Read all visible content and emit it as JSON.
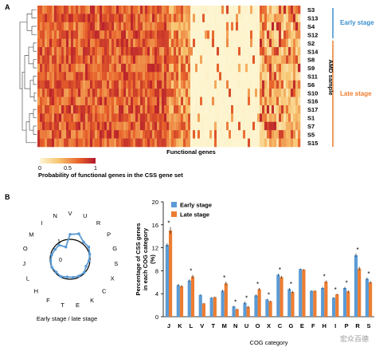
{
  "panel_a": {
    "label": "A",
    "samples": [
      "S3",
      "S13",
      "S4",
      "S12",
      "S2",
      "S14",
      "S8",
      "S9",
      "S11",
      "S6",
      "S10",
      "S16",
      "S17",
      "S1",
      "S7",
      "S5",
      "S15"
    ],
    "groups": [
      {
        "name": "Early stage",
        "color": "#3a8fcf"
      },
      {
        "name": "Late stage",
        "color": "#ef7d2e"
      }
    ],
    "y_axis_label": "AMD sample",
    "x_axis_label": "Functional genes",
    "colorbar": {
      "ticks": [
        "0",
        "0.5",
        "1"
      ],
      "title": "Probability of functional genes in the CSS gene set",
      "colors": [
        "#fdf6d3",
        "#f7c46f",
        "#e8632b",
        "#b2182b"
      ]
    }
  },
  "panel_b": {
    "label": "B",
    "radar_caption": "Early stage  / late stage",
    "radar_ring_labels": [
      "0",
      "1"
    ],
    "legend": [
      "Early stage",
      "Late stage"
    ],
    "colors": {
      "early": "#5b9bd5",
      "late": "#ed7d31"
    },
    "watermark": "宏众百德"
  },
  "chart_data": [
    {
      "type": "radar",
      "categories": [
        "V",
        "U",
        "R",
        "P",
        "G",
        "S",
        "X",
        "C",
        "K",
        "E",
        "T",
        "F",
        "H",
        "L",
        "J",
        "O",
        "M",
        "I",
        "N"
      ],
      "series": [
        {
          "name": "Early stage / late stage",
          "values": [
            1.25,
            1.35,
            1.1,
            1.12,
            1.02,
            0.95,
            0.88,
            0.97,
            0.95,
            0.92,
            0.9,
            0.98,
            0.95,
            1.0,
            0.98,
            0.95,
            0.9,
            0.9,
            0.65
          ]
        }
      ],
      "rings": [
        0,
        1
      ]
    },
    {
      "type": "bar",
      "categories": [
        "J",
        "K",
        "L",
        "V",
        "T",
        "M",
        "N",
        "U",
        "O",
        "X",
        "C",
        "G",
        "E",
        "F",
        "H",
        "I",
        "P",
        "R",
        "S"
      ],
      "series": [
        {
          "name": "Early stage",
          "values": [
            12.5,
            5.5,
            6.3,
            3.8,
            3.3,
            4.5,
            1.8,
            2.4,
            3.7,
            3.0,
            7.3,
            4.8,
            8.3,
            4.5,
            5.0,
            3.3,
            5.0,
            10.7,
            6.6
          ],
          "errors": [
            0.3,
            0.2,
            0.2,
            0.1,
            0.1,
            0.2,
            0.1,
            0.2,
            0.2,
            0.1,
            0.2,
            0.2,
            0.1,
            0.1,
            0.2,
            0.1,
            0.2,
            0.3,
            0.2
          ]
        },
        {
          "name": "Late stage",
          "values": [
            15.0,
            5.3,
            7.0,
            2.3,
            3.4,
            5.8,
            1.3,
            1.7,
            4.8,
            2.7,
            6.9,
            4.3,
            8.2,
            4.5,
            6.1,
            3.9,
            4.4,
            8.4,
            6.0
          ],
          "errors": [
            0.6,
            0.2,
            0.3,
            0.1,
            0.1,
            0.3,
            0.1,
            0.2,
            0.2,
            0.1,
            0.2,
            0.2,
            0.1,
            0.1,
            0.2,
            0.1,
            0.2,
            0.3,
            0.2
          ]
        }
      ],
      "significant": [
        true,
        false,
        true,
        false,
        false,
        true,
        true,
        true,
        true,
        true,
        true,
        true,
        false,
        false,
        true,
        true,
        true,
        true,
        true
      ],
      "significance_marker": "*",
      "ylim": [
        0,
        20
      ],
      "yticks": [
        "0",
        "4",
        "8",
        "12",
        "16",
        "20"
      ],
      "ylabel": "Percentage of CSS genes in each COG category (%)",
      "xlabel": "COG category",
      "legend_position": "top-left"
    }
  ]
}
